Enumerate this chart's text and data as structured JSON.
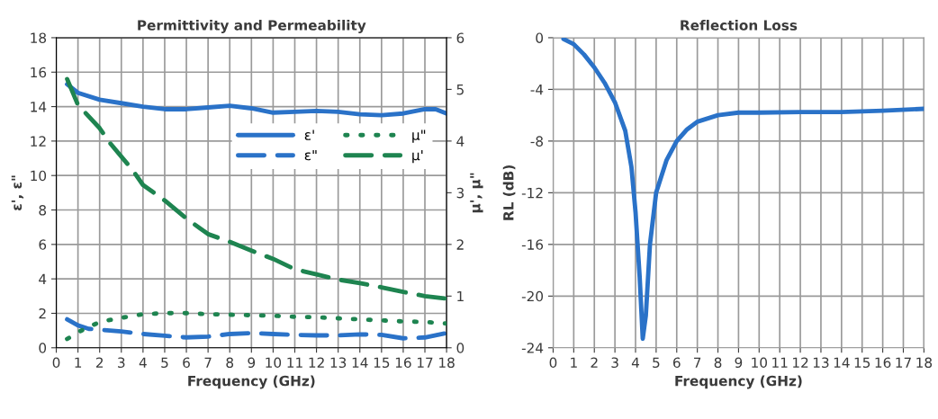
{
  "chart_data": [
    {
      "type": "line",
      "title": "Permittivity and Permeability",
      "xlabel": "Frequency (GHz)",
      "ylabel": "ε', ε\"",
      "y2label": "μ', μ\"",
      "xlim": [
        0,
        18
      ],
      "xticks": [
        0,
        1,
        2,
        3,
        4,
        5,
        6,
        7,
        8,
        9,
        10,
        11,
        12,
        13,
        14,
        15,
        16,
        17,
        18
      ],
      "ylim": [
        0,
        18
      ],
      "yticks": [
        0,
        2,
        4,
        6,
        8,
        10,
        12,
        14,
        16,
        18
      ],
      "y2lim": [
        0,
        6
      ],
      "y2ticks": [
        0,
        1,
        2,
        3,
        4,
        5,
        6
      ],
      "grid": true,
      "legend": "right",
      "series": [
        {
          "name": "ε'",
          "color": "#2a72c8",
          "line_style": "solid",
          "x": [
            0.5,
            1,
            2,
            3,
            4,
            5,
            6,
            7,
            8,
            9,
            10,
            11,
            12,
            13,
            14,
            15,
            16,
            17,
            17.5,
            18
          ],
          "values": [
            15.3,
            14.8,
            14.4,
            14.2,
            14.0,
            13.85,
            13.85,
            13.95,
            14.05,
            13.9,
            13.65,
            13.7,
            13.75,
            13.7,
            13.55,
            13.5,
            13.6,
            13.85,
            13.85,
            13.6
          ]
        },
        {
          "name": "ε\"",
          "color": "#2a72c8",
          "line_style": "dashed",
          "x": [
            0.5,
            1,
            1.5,
            2,
            3,
            4,
            5,
            6,
            7,
            8,
            9,
            10,
            11,
            12,
            13,
            14,
            15,
            16,
            17,
            18
          ],
          "values": [
            1.65,
            1.3,
            1.1,
            1.05,
            0.95,
            0.8,
            0.7,
            0.6,
            0.65,
            0.8,
            0.85,
            0.8,
            0.75,
            0.72,
            0.72,
            0.78,
            0.75,
            0.55,
            0.6,
            0.85
          ]
        },
        {
          "name": "μ\"",
          "color": "#1e8450",
          "line_style": "dotted",
          "axis": "y2",
          "x": [
            0.5,
            1,
            1.5,
            2,
            3,
            4,
            5,
            6,
            7,
            8,
            9,
            10,
            11,
            12,
            13,
            14,
            15,
            16,
            17,
            18
          ],
          "values": [
            0.17,
            0.3,
            0.4,
            0.5,
            0.58,
            0.65,
            0.67,
            0.67,
            0.65,
            0.64,
            0.63,
            0.62,
            0.6,
            0.59,
            0.57,
            0.55,
            0.53,
            0.51,
            0.5,
            0.47
          ]
        },
        {
          "name": "μ'",
          "color": "#1e8450",
          "line_style": "dashed",
          "axis": "y2",
          "x": [
            0.5,
            1,
            2,
            2.5,
            3.5,
            4,
            5,
            6,
            7,
            8,
            9,
            10,
            11,
            12,
            13,
            14,
            15,
            16,
            17,
            18
          ],
          "values": [
            5.2,
            4.7,
            4.25,
            3.95,
            3.45,
            3.15,
            2.85,
            2.5,
            2.2,
            2.05,
            1.88,
            1.72,
            1.52,
            1.42,
            1.32,
            1.25,
            1.17,
            1.08,
            1.0,
            0.95
          ]
        }
      ]
    },
    {
      "type": "line",
      "title": "Reflection Loss",
      "xlabel": "Frequency (GHz)",
      "ylabel": "RL (dB)",
      "xlim": [
        0,
        18
      ],
      "xticks": [
        0,
        1,
        2,
        3,
        4,
        5,
        6,
        7,
        8,
        9,
        10,
        11,
        12,
        13,
        14,
        15,
        16,
        17,
        18
      ],
      "ylim": [
        -24,
        0
      ],
      "yticks": [
        -24,
        -20,
        -16,
        -12,
        -8,
        -4,
        0
      ],
      "grid": true,
      "series": [
        {
          "color": "#2a72c8",
          "line_style": "solid",
          "x": [
            0.5,
            1,
            1.5,
            2,
            2.5,
            3,
            3.5,
            3.8,
            4,
            4.2,
            4.35,
            4.5,
            4.7,
            5,
            5.5,
            6,
            6.5,
            7,
            8,
            9,
            10,
            12,
            14,
            16,
            18
          ],
          "values": [
            -0.1,
            -0.5,
            -1.3,
            -2.3,
            -3.5,
            -5,
            -7.2,
            -10,
            -13.5,
            -18.5,
            -23.3,
            -21.5,
            -16,
            -12,
            -9.5,
            -8,
            -7.1,
            -6.5,
            -6,
            -5.8,
            -5.8,
            -5.75,
            -5.75,
            -5.65,
            -5.5
          ]
        }
      ]
    }
  ]
}
